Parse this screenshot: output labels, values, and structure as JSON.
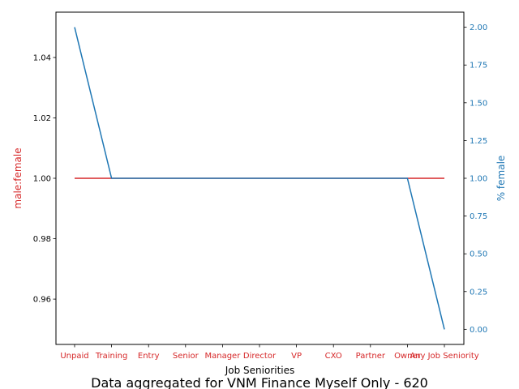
{
  "chart_data": {
    "type": "line",
    "title": "Data aggregated for VNM Finance Myself Only - 620",
    "xlabel": "Job Seniorities",
    "categories": [
      "Unpaid",
      "Training",
      "Entry",
      "Senior",
      "Manager",
      "Director",
      "VP",
      "CXO",
      "Partner",
      "Owner",
      "Any Job Seniority"
    ],
    "left_axis": {
      "label": "male:female",
      "color": "#d62728",
      "ylim": [
        0.945,
        1.055
      ],
      "ticks": [
        0.96,
        0.98,
        1.0,
        1.02,
        1.04
      ],
      "tick_labels": [
        "0.96",
        "0.98",
        "1.00",
        "1.02",
        "1.04"
      ]
    },
    "right_axis": {
      "label": "% female",
      "color": "#1f77b4",
      "ylim": [
        -0.1,
        2.1
      ],
      "ticks": [
        0.0,
        0.25,
        0.5,
        0.75,
        1.0,
        1.25,
        1.5,
        1.75,
        2.0
      ],
      "tick_labels": [
        "0.00",
        "0.25",
        "0.50",
        "0.75",
        "1.00",
        "1.25",
        "1.50",
        "1.75",
        "2.00"
      ]
    },
    "series": [
      {
        "axis": "left",
        "color": "#d62728",
        "values": [
          1,
          1,
          1,
          1,
          1,
          1,
          1,
          1,
          1,
          1,
          1
        ]
      },
      {
        "axis": "right",
        "color": "#1f77b4",
        "values": [
          2,
          1,
          1,
          1,
          1,
          1,
          1,
          1,
          1,
          1,
          0
        ]
      }
    ],
    "grid": false
  }
}
